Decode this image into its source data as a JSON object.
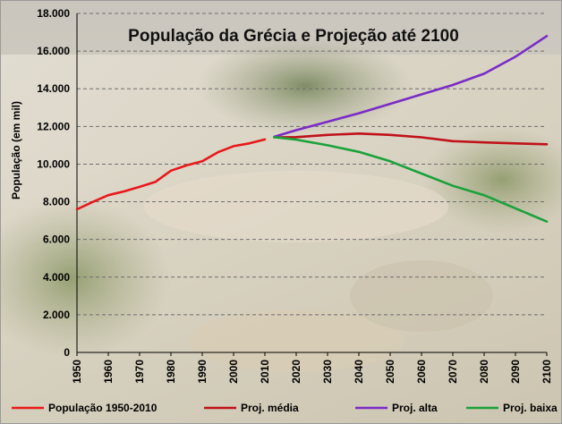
{
  "chart_data": {
    "type": "line",
    "title": "População da Grécia e Projeção até 2100",
    "ylabel": "População (em mil)",
    "xlabel": "",
    "xlim": [
      1950,
      2100
    ],
    "ylim": [
      0,
      18000
    ],
    "x_ticks": [
      "1950",
      "1960",
      "1970",
      "1980",
      "1990",
      "2000",
      "2010",
      "2020",
      "2030",
      "2040",
      "2050",
      "2060",
      "2070",
      "2080",
      "2090",
      "2100"
    ],
    "y_ticks": [
      "0",
      "2.000",
      "4.000",
      "6.000",
      "8.000",
      "10.000",
      "12.000",
      "14.000",
      "16.000",
      "18.000"
    ],
    "y_tick_values": [
      0,
      2000,
      4000,
      6000,
      8000,
      10000,
      12000,
      14000,
      16000,
      18000
    ],
    "grid": "horizontal dashed",
    "legend_position": "bottom",
    "series": [
      {
        "name": "População 1950-2010",
        "color": "#e8181b",
        "points": [
          [
            1950,
            7600
          ],
          [
            1955,
            7990
          ],
          [
            1960,
            8350
          ],
          [
            1965,
            8550
          ],
          [
            1970,
            8790
          ],
          [
            1975,
            9050
          ],
          [
            1980,
            9650
          ],
          [
            1985,
            9930
          ],
          [
            1990,
            10150
          ],
          [
            1995,
            10630
          ],
          [
            2000,
            10950
          ],
          [
            2005,
            11100
          ],
          [
            2010,
            11310
          ]
        ]
      },
      {
        "name": "Proj. média",
        "color": "#c0121a",
        "points": [
          [
            2013,
            11420
          ],
          [
            2020,
            11430
          ],
          [
            2030,
            11550
          ],
          [
            2040,
            11620
          ],
          [
            2050,
            11550
          ],
          [
            2060,
            11420
          ],
          [
            2070,
            11220
          ],
          [
            2080,
            11150
          ],
          [
            2090,
            11100
          ],
          [
            2100,
            11050
          ]
        ]
      },
      {
        "name": "Proj. alta",
        "color": "#7a2bc7",
        "points": [
          [
            2013,
            11450
          ],
          [
            2020,
            11800
          ],
          [
            2030,
            12250
          ],
          [
            2040,
            12700
          ],
          [
            2050,
            13200
          ],
          [
            2060,
            13700
          ],
          [
            2070,
            14200
          ],
          [
            2080,
            14800
          ],
          [
            2090,
            15700
          ],
          [
            2100,
            16800
          ]
        ]
      },
      {
        "name": "Proj. baixa",
        "color": "#1aa23b",
        "points": [
          [
            2013,
            11430
          ],
          [
            2020,
            11300
          ],
          [
            2030,
            11000
          ],
          [
            2040,
            10650
          ],
          [
            2050,
            10150
          ],
          [
            2060,
            9500
          ],
          [
            2070,
            8850
          ],
          [
            2080,
            8350
          ],
          [
            2090,
            7650
          ],
          [
            2100,
            6950
          ]
        ]
      }
    ]
  }
}
